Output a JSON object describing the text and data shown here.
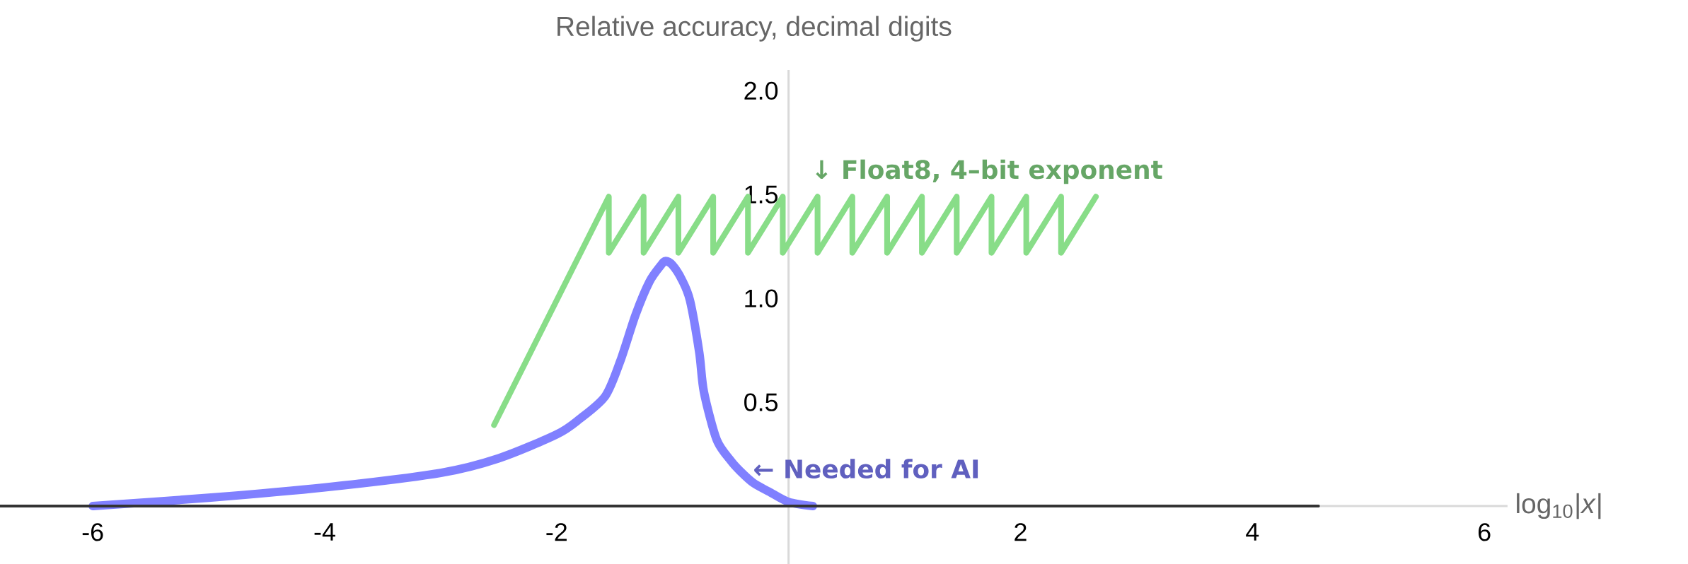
{
  "chart_data": {
    "type": "line",
    "title": "Relative accuracy, decimal digits",
    "xlabel": "log$_{10}$|*x*|",
    "xlim": [
      -6.8,
      6.2
    ],
    "ylim": [
      -0.28,
      2.1
    ],
    "xticks": [
      -6,
      -4,
      -2,
      2,
      4,
      6
    ],
    "yticks": [
      0.5,
      {
        "value": 1,
        "label": "1.0"
      },
      1.5,
      {
        "value": 2,
        "label": "2.0"
      }
    ],
    "series": [
      {
        "color": "#88dd88",
        "x": [
          -2.54,
          -1.55,
          -1.55,
          -1.25,
          -1.25,
          -0.95,
          -0.95,
          -0.65,
          -0.65,
          -0.35,
          -0.35,
          -0.05,
          -0.05,
          0.25,
          0.25,
          0.55,
          0.55,
          0.85,
          0.85,
          1.15,
          1.15,
          1.45,
          1.45,
          1.75,
          1.75,
          2.05,
          2.05,
          2.35,
          2.35,
          2.65
        ],
        "values": [
          0.39,
          1.49,
          1.22,
          1.49,
          1.22,
          1.49,
          1.22,
          1.49,
          1.22,
          1.49,
          1.22,
          1.49,
          1.22,
          1.49,
          1.22,
          1.49,
          1.22,
          1.49,
          1.22,
          1.49,
          1.22,
          1.49,
          1.22,
          1.49,
          1.22,
          1.49,
          1.22,
          1.49,
          1.22,
          1.49
        ]
      },
      {
        "color": "#8080ff",
        "x": [
          -6,
          -5,
          -4,
          -3,
          -2.5,
          -2,
          -1.8,
          -1.58,
          -1.45,
          -1.32,
          -1.2,
          -1.1,
          -1.06,
          -1.0,
          -0.92,
          -0.85,
          -0.77,
          -0.73,
          -0.62,
          -0.5,
          -0.42,
          -0.3,
          -0.17,
          0,
          0.21
        ],
        "values": [
          0,
          0.04,
          0.09,
          0.16,
          0.23,
          0.345,
          0.42,
          0.53,
          0.7,
          0.92,
          1.08,
          1.16,
          1.18,
          1.16,
          1.09,
          0.99,
          0.74,
          0.55,
          0.32,
          0.22,
          0.17,
          0.11,
          0.07,
          0.02,
          0
        ]
      },
      {
        "color": "#333333",
        "x": [
          -6.8,
          4.57
        ],
        "values": [
          0,
          0
        ]
      }
    ],
    "annotations": [
      "↓ Float8, 4–bit exponent",
      "← Needed for AI"
    ]
  }
}
